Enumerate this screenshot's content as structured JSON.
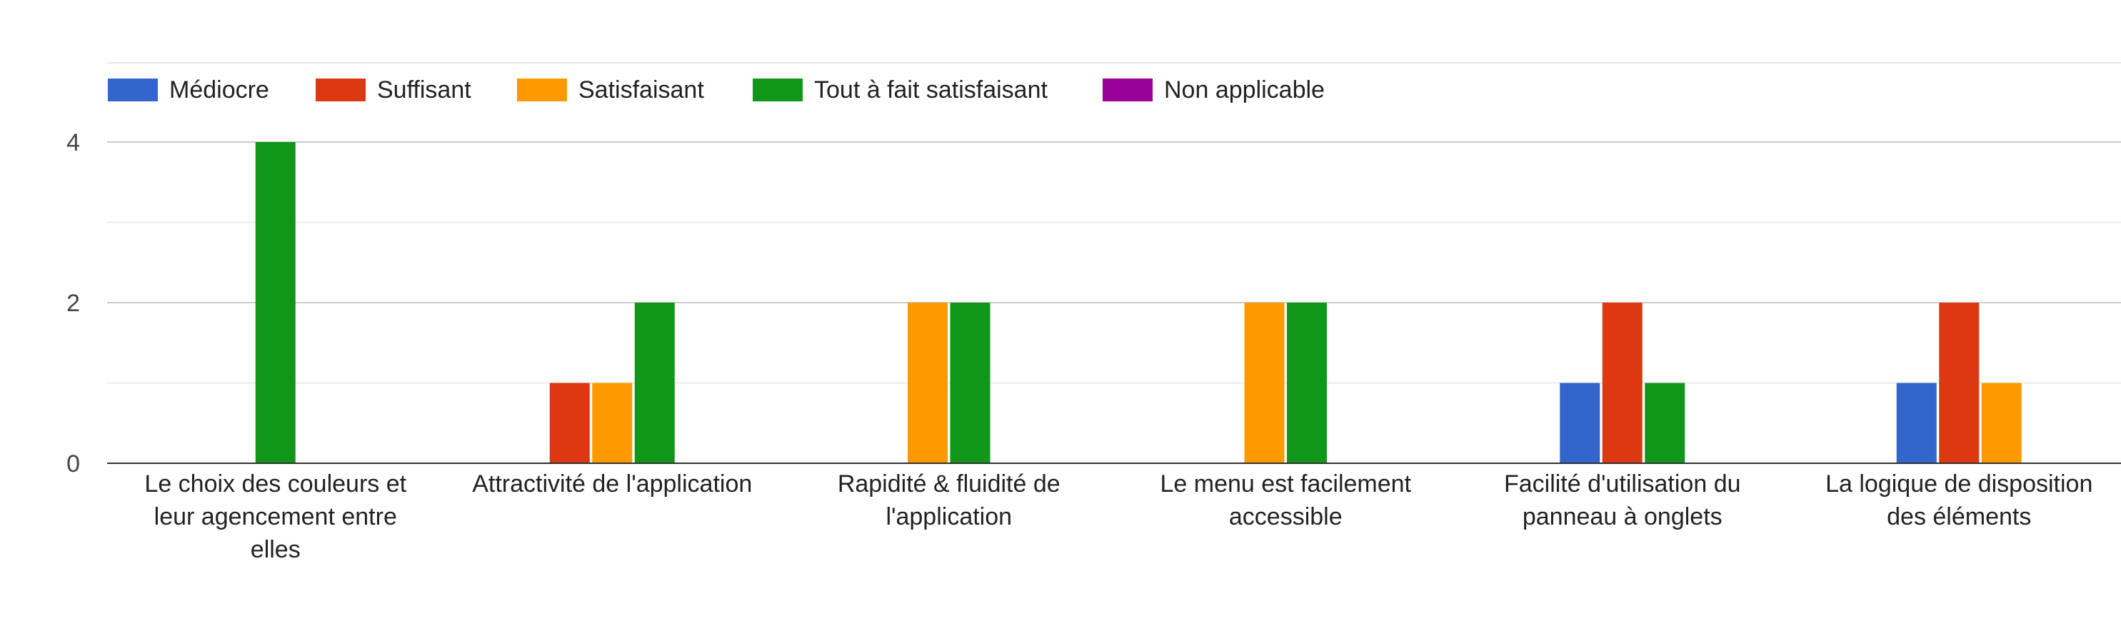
{
  "chart_data": {
    "type": "bar",
    "title": "",
    "xlabel": "",
    "ylabel": "",
    "ylim": [
      0,
      4
    ],
    "yticks": [
      0,
      2,
      4
    ],
    "grid": true,
    "legend_position": "top-left",
    "categories": [
      [
        "Le choix des couleurs et",
        "leur agencement entre",
        "elles"
      ],
      [
        "Attractivité de l'application"
      ],
      [
        "Rapidité & fluidité de",
        "l'application"
      ],
      [
        "Le menu est facilement",
        "accessible"
      ],
      [
        "Facilité d'utilisation du",
        "panneau à onglets"
      ],
      [
        "La logique de disposition",
        "des éléments"
      ]
    ],
    "series": [
      {
        "name": "Médiocre",
        "color": "#3366cc",
        "values": [
          0,
          0,
          0,
          0,
          1,
          1
        ]
      },
      {
        "name": "Suffisant",
        "color": "#dc3912",
        "values": [
          0,
          1,
          0,
          0,
          2,
          2
        ]
      },
      {
        "name": "Satisfaisant",
        "color": "#ff9900",
        "values": [
          0,
          1,
          2,
          2,
          0,
          1
        ]
      },
      {
        "name": "Tout à fait satisfaisant",
        "color": "#109618",
        "values": [
          4,
          2,
          2,
          2,
          1,
          0
        ]
      },
      {
        "name": "Non applicable",
        "color": "#990099",
        "values": [
          0,
          0,
          0,
          0,
          0,
          0
        ]
      }
    ]
  }
}
